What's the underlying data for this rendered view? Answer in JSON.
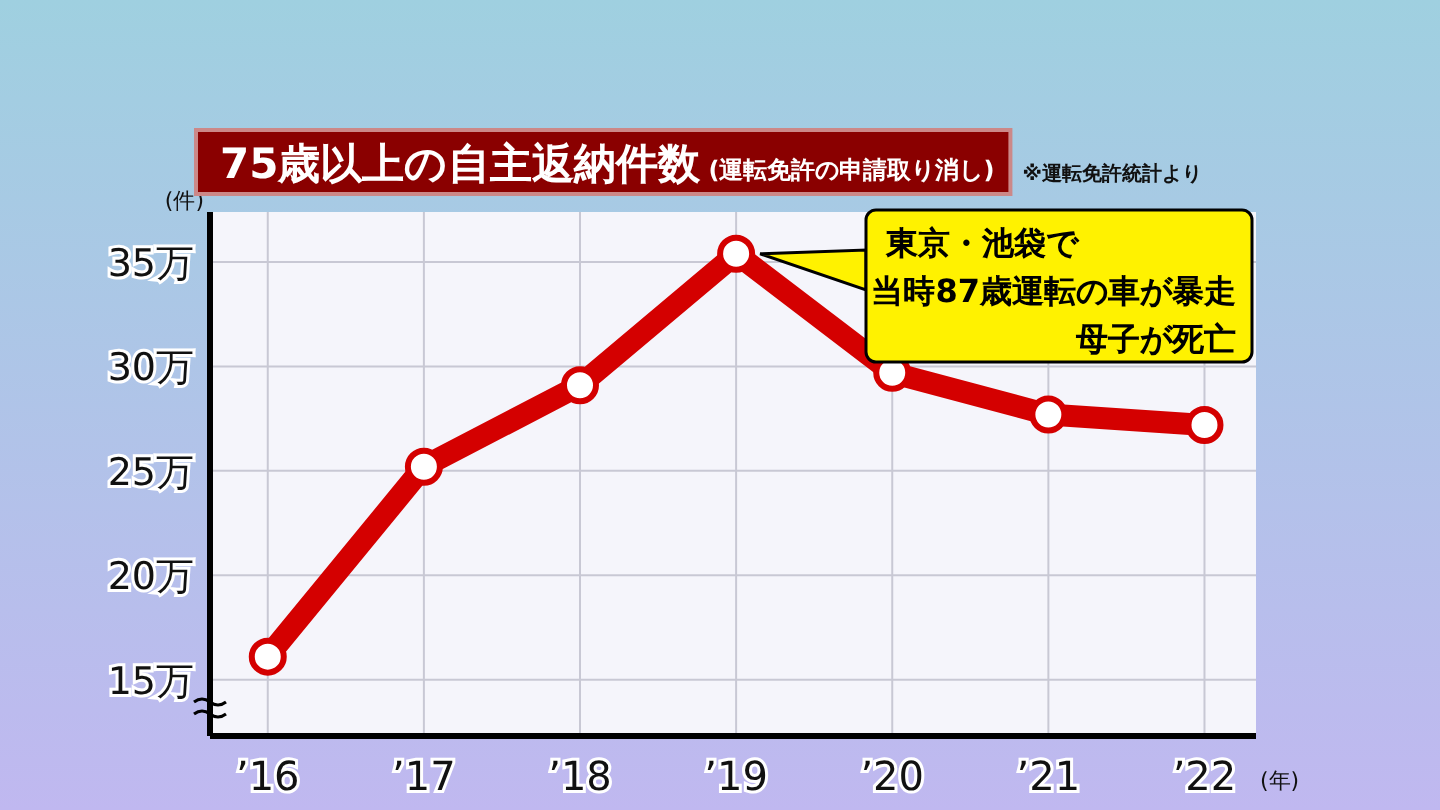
{
  "chart_data": {
    "type": "line",
    "title": "75歳以上の自主返納件数",
    "subtitle": "(運転免許の申請取り消し)",
    "xlabel": "(年)",
    "ylabel": "(件)",
    "categories": [
      "’16",
      "’17",
      "’18",
      "’19",
      "’20",
      "’21",
      "’22"
    ],
    "series": [
      {
        "color": "#d40000",
        "values": [
          16.1,
          25.2,
          29.1,
          35.4,
          29.7,
          27.7,
          27.2
        ]
      }
    ],
    "ylim": [
      12.3,
      37.4
    ],
    "yticks": [
      {
        "value": 15,
        "label": "15万"
      },
      {
        "value": 20,
        "label": "20万"
      },
      {
        "value": 25,
        "label": "25万"
      },
      {
        "value": 30,
        "label": "30万"
      },
      {
        "value": 35,
        "label": "35万"
      }
    ],
    "grid": true,
    "marker": "circle",
    "line_style": "solid",
    "annotations": [
      "※運転免許統計より",
      "東京・池袋で",
      "当時87歳運転の車が暴走",
      "母子が死亡"
    ]
  }
}
